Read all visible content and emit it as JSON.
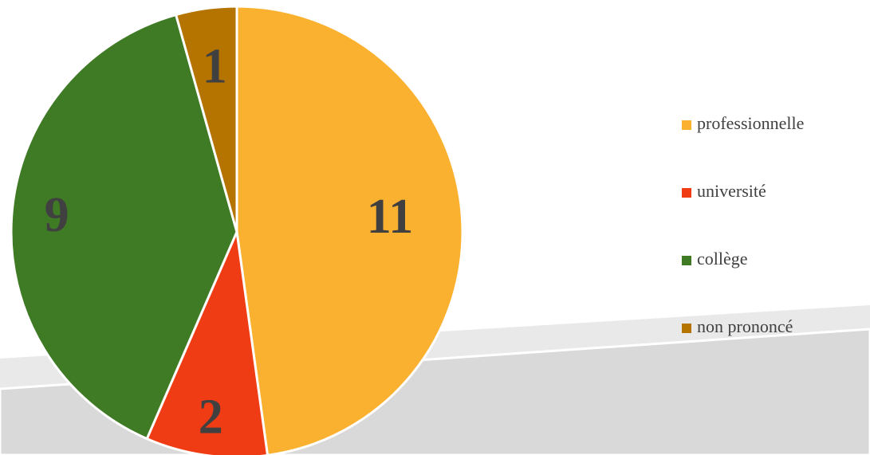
{
  "chart_data": {
    "type": "pie",
    "categories": [
      "professionnelle",
      "université",
      "collège",
      "non prononcé"
    ],
    "values": [
      11,
      2,
      9,
      1
    ],
    "colors": [
      "#fbb130",
      "#f03c14",
      "#3f7a24",
      "#b57300"
    ],
    "legend": "right"
  }
}
